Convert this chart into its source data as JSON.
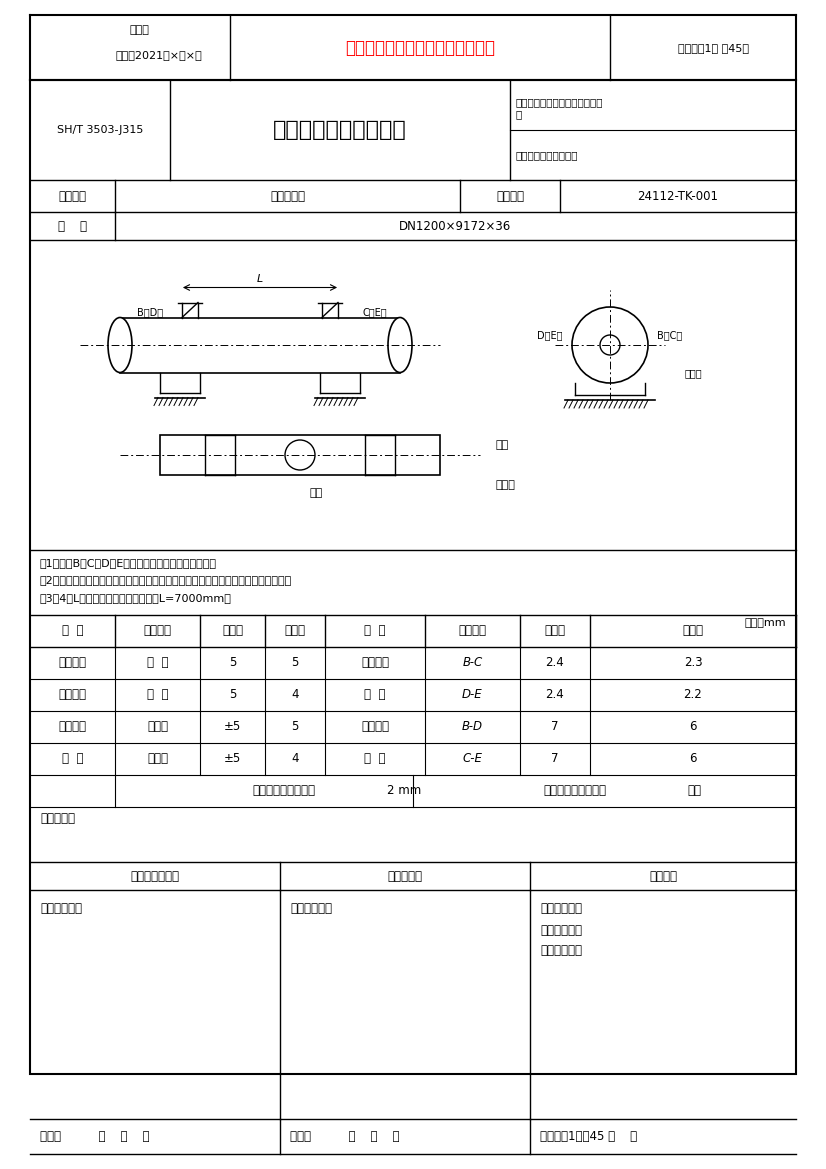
{
  "page_bg": "#ffffff",
  "border_color": "#000000",
  "header_red_text": "书山有路勤为径，学海无涯苦作舟",
  "header_left1": "编号：",
  "header_left2": "时间：2021年×月×日",
  "header_right": "页码：第1页 共45页",
  "form_code": "SH/T 3503-J315",
  "form_title": "卧式设备安装检验记录",
  "project_name": "工程名称：武汉乙烯工程热电联\n产",
  "unit_name": "单元名称：动设备安装",
  "device_name_label": "设备名称",
  "device_name_value": "高压分气缸",
  "device_no_label": "设备位号",
  "device_no_value": "24112-TK-001",
  "spec_label": "规    格",
  "spec_value": "DN1200×9172×36",
  "note1": "注1：图中B、C、D、E为设备筒体水平度测量基准点。",
  "note2": "注2：设备安装标高测量值为设备基础上的标高基准线到设备支座底板下表面的距离。",
  "note3": "注3：4：L为两端测量点间的距离，取L=7000mm。",
  "unit_label": "单位：mm",
  "table_headers": [
    "项  目",
    "测量部位",
    "允许值",
    "实测值",
    "项  目",
    "测量部位",
    "允许值",
    "实测值"
  ],
  "table_rows": [
    [
      "支座中心",
      "纵  向",
      "5",
      "5",
      "纵向水平",
      "B-C",
      "2.4",
      "2.3"
    ],
    [
      "位置偏差",
      "横  向",
      "5",
      "4",
      "偏  差",
      "D-E",
      "2.4",
      "2.2"
    ],
    [
      "支座标高",
      "滑动端",
      "±5",
      "5",
      "横向水平",
      "B-D",
      "7",
      "6"
    ],
    [
      "偏  差",
      "固定端",
      "±5",
      "4",
      "偏  差",
      "C-E",
      "7",
      "6"
    ]
  ],
  "slide_row": [
    "滑动端支座滑动裕量",
    "2 mm",
    "螺母松开和锁紧情况",
    "锁紧"
  ],
  "conclusion_label": "检验结论：",
  "sign_headers": [
    "建设／监理单位",
    "总承包单位",
    "施工单位"
  ],
  "sign_rows_left": [
    "专业工程师：",
    "日期：          年    月    日"
  ],
  "sign_rows_mid": [
    "专业工程师：",
    "日期：          年    月    日"
  ],
  "sign_rows_right": [
    "专业工程师：",
    "质量检查员：",
    "施工班组长：",
    "日期：第1页共45 月    日"
  ]
}
